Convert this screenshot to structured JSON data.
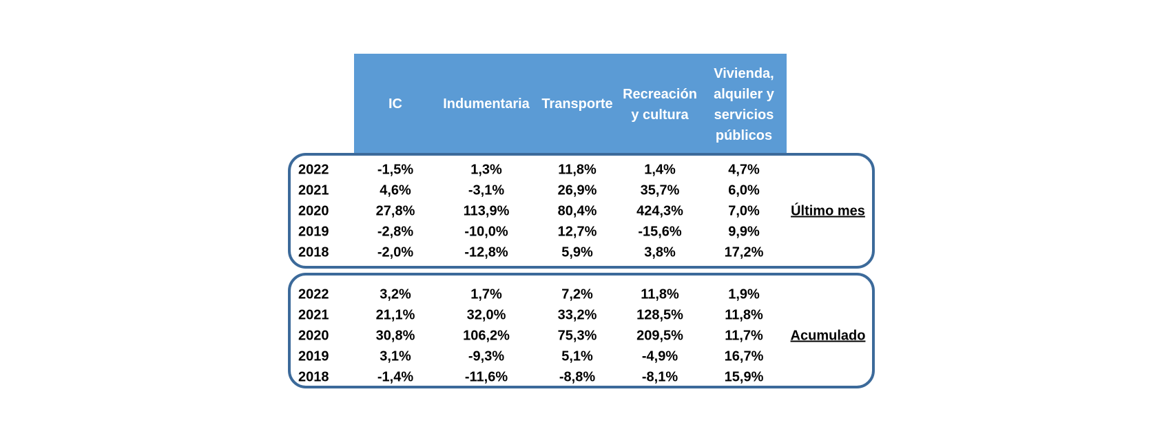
{
  "chart_data": {
    "type": "table",
    "columns": [
      "IC",
      "Indumentaria",
      "Transporte",
      "Recreación\ny cultura",
      "Vivienda,\nalquiler y\nservicios\npúblicos"
    ],
    "groups": [
      {
        "label": "Último mes",
        "rows": [
          {
            "year": "2022",
            "values": [
              "-1,5%",
              "1,3%",
              "11,8%",
              "1,4%",
              "4,7%"
            ]
          },
          {
            "year": "2021",
            "values": [
              "4,6%",
              "-3,1%",
              "26,9%",
              "35,7%",
              "6,0%"
            ]
          },
          {
            "year": "2020",
            "values": [
              "27,8%",
              "113,9%",
              "80,4%",
              "424,3%",
              "7,0%"
            ]
          },
          {
            "year": "2019",
            "values": [
              "-2,8%",
              "-10,0%",
              "12,7%",
              "-15,6%",
              "9,9%"
            ]
          },
          {
            "year": "2018",
            "values": [
              "-2,0%",
              "-12,8%",
              "5,9%",
              "3,8%",
              "17,2%"
            ]
          }
        ]
      },
      {
        "label": "Acumulado",
        "rows": [
          {
            "year": "2022",
            "values": [
              "3,2%",
              "1,7%",
              "7,2%",
              "11,8%",
              "1,9%"
            ]
          },
          {
            "year": "2021",
            "values": [
              "21,1%",
              "32,0%",
              "33,2%",
              "128,5%",
              "11,8%"
            ]
          },
          {
            "year": "2020",
            "values": [
              "30,8%",
              "106,2%",
              "75,3%",
              "209,5%",
              "11,7%"
            ]
          },
          {
            "year": "2019",
            "values": [
              "3,1%",
              "-9,3%",
              "5,1%",
              "-4,9%",
              "16,7%"
            ]
          },
          {
            "year": "2018",
            "values": [
              "-1,4%",
              "-11,6%",
              "-8,8%",
              "-8,1%",
              "15,9%"
            ]
          }
        ]
      }
    ]
  },
  "colors": {
    "header_fill": "#5b9bd5",
    "header_text": "#ffffff",
    "box_border": "#3c6a9a"
  }
}
